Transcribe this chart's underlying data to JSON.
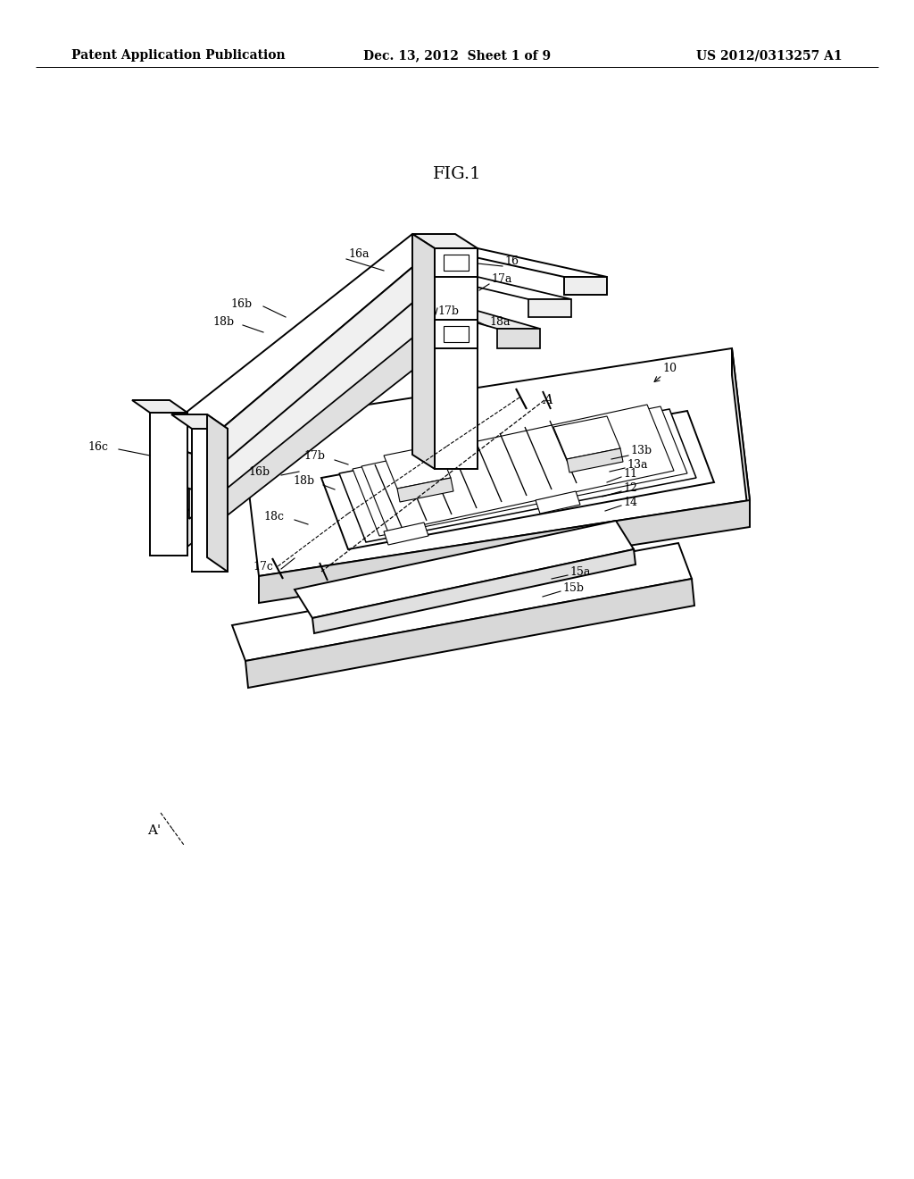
{
  "background_color": "#ffffff",
  "header_left": "Patent Application Publication",
  "header_center": "Dec. 13, 2012  Sheet 1 of 9",
  "header_right": "US 2012/0313257 A1",
  "fig_title": "FIG.1",
  "line_color": "#000000",
  "lw": 1.4,
  "thin_lw": 0.8
}
